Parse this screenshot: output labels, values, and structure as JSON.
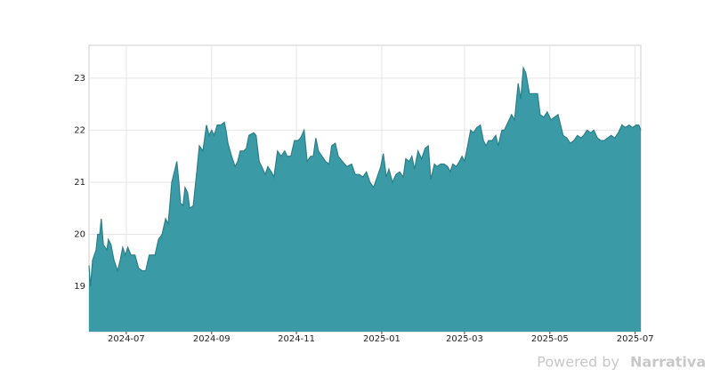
{
  "chart_data": {
    "type": "area",
    "x": [
      2024.427,
      2024.43,
      2024.434,
      2024.441,
      2024.444,
      2024.448,
      2024.451,
      2024.455,
      2024.462,
      2024.465,
      2024.47,
      2024.476,
      2024.483,
      2024.488,
      2024.493,
      2024.498,
      2024.503,
      2024.509,
      2024.517,
      2024.524,
      2024.531,
      2024.538,
      2024.545,
      2024.556,
      2024.563,
      2024.57,
      2024.577,
      2024.582,
      2024.589,
      2024.594,
      2024.599,
      2024.603,
      2024.606,
      2024.611,
      2024.615,
      2024.62,
      2024.624,
      2024.631,
      2024.638,
      2024.643,
      2024.65,
      2024.657,
      2024.662,
      2024.667,
      2024.672,
      2024.678,
      2024.685,
      2024.692,
      2024.695,
      2024.699,
      2024.706,
      2024.713,
      2024.718,
      2024.723,
      2024.73,
      2024.735,
      2024.74,
      2024.749,
      2024.754,
      2024.76,
      2024.765,
      2024.772,
      2024.777,
      2024.784,
      2024.789,
      2024.796,
      2024.803,
      2024.81,
      2024.815,
      2024.822,
      2024.829,
      2024.836,
      2024.841,
      2024.848,
      2024.854,
      2024.861,
      2024.866,
      2024.871,
      2024.876,
      2024.883,
      2024.89,
      2024.897,
      2024.902,
      2024.909,
      2024.915,
      2024.923,
      2024.932,
      2024.941,
      2024.948,
      2024.956,
      2024.963,
      2024.97,
      2024.977,
      2024.984,
      2024.991,
      2024.998,
      2025.003,
      2025.009,
      2025.014,
      2025.021,
      2025.028,
      2025.035,
      2025.042,
      2025.047,
      2025.054,
      2025.059,
      2025.064,
      2025.071,
      2025.078,
      2025.085,
      2025.091,
      2025.096,
      2025.103,
      2025.108,
      2025.115,
      2025.122,
      2025.129,
      2025.134,
      2025.139,
      2025.146,
      2025.152,
      2025.157,
      2025.162,
      2025.169,
      2025.174,
      2025.179,
      2025.186,
      2025.193,
      2025.199,
      2025.204,
      2025.209,
      2025.216,
      2025.223,
      2025.228,
      2025.235,
      2025.24,
      2025.247,
      2025.254,
      2025.26,
      2025.267,
      2025.272,
      2025.277,
      2025.282,
      2025.289,
      2025.298,
      2025.305,
      2025.31,
      2025.317,
      2025.324,
      2025.331,
      2025.338,
      2025.345,
      2025.35,
      2025.355,
      2025.362,
      2025.369,
      2025.376,
      2025.383,
      2025.39,
      2025.395,
      2025.402,
      2025.409,
      2025.415,
      2025.422,
      2025.429,
      2025.435,
      2025.442,
      2025.449,
      2025.456,
      2025.463,
      2025.47,
      2025.477,
      2025.484,
      2025.491,
      2025.498,
      2025.503,
      2025.507
    ],
    "values": [
      19.4,
      19.0,
      19.5,
      19.7,
      20.0,
      20.0,
      20.3,
      19.8,
      19.7,
      19.9,
      19.8,
      19.5,
      19.3,
      19.5,
      19.75,
      19.6,
      19.75,
      19.6,
      19.6,
      19.35,
      19.3,
      19.3,
      19.6,
      19.6,
      19.9,
      20.0,
      20.3,
      20.2,
      21.0,
      21.2,
      21.4,
      21.0,
      20.6,
      20.55,
      20.9,
      20.8,
      20.5,
      20.55,
      21.2,
      21.7,
      21.6,
      22.1,
      21.9,
      22.0,
      21.9,
      22.1,
      22.1,
      22.15,
      22.0,
      21.75,
      21.5,
      21.3,
      21.4,
      21.6,
      21.6,
      21.65,
      21.9,
      21.95,
      21.9,
      21.4,
      21.3,
      21.15,
      21.3,
      21.2,
      21.1,
      21.6,
      21.5,
      21.6,
      21.5,
      21.5,
      21.8,
      21.8,
      21.85,
      22.0,
      21.4,
      21.5,
      21.5,
      21.85,
      21.6,
      21.5,
      21.4,
      21.35,
      21.7,
      21.75,
      21.5,
      21.4,
      21.3,
      21.35,
      21.15,
      21.15,
      21.1,
      21.2,
      21.0,
      20.9,
      21.1,
      21.3,
      21.55,
      21.1,
      21.25,
      21.0,
      21.15,
      21.2,
      21.1,
      21.45,
      21.4,
      21.5,
      21.25,
      21.6,
      21.45,
      21.65,
      21.7,
      21.05,
      21.35,
      21.3,
      21.35,
      21.35,
      21.3,
      21.2,
      21.35,
      21.3,
      21.4,
      21.5,
      21.4,
      21.75,
      22.0,
      21.95,
      22.05,
      22.1,
      21.8,
      21.7,
      21.8,
      21.8,
      21.9,
      21.7,
      22.0,
      22.0,
      22.15,
      22.3,
      22.2,
      22.9,
      22.6,
      23.2,
      23.1,
      22.7,
      22.7,
      22.7,
      22.3,
      22.25,
      22.35,
      22.2,
      22.25,
      22.3,
      22.1,
      21.9,
      21.85,
      21.75,
      21.8,
      21.9,
      21.85,
      21.9,
      22.0,
      21.95,
      22.0,
      21.85,
      21.8,
      21.8,
      21.85,
      21.9,
      21.85,
      21.95,
      22.1,
      22.05,
      22.1,
      22.05,
      22.1,
      22.1,
      22.0
    ],
    "color": "#3a9ba6",
    "line_color": "#2b7f89",
    "xlim": [
      2024.427,
      2025.507
    ],
    "ylim": [
      18.13,
      23.63
    ],
    "xticks": [
      {
        "value": 2024.5,
        "label": "2024-07"
      },
      {
        "value": 2024.667,
        "label": "2024-09"
      },
      {
        "value": 2024.833,
        "label": "2024-11"
      },
      {
        "value": 2025.0,
        "label": "2025-01"
      },
      {
        "value": 2025.162,
        "label": "2025-03"
      },
      {
        "value": 2025.329,
        "label": "2025-05"
      },
      {
        "value": 2025.496,
        "label": "2025-07"
      }
    ],
    "yticks": [
      19,
      20,
      21,
      22,
      23
    ],
    "grid": true
  },
  "footer": {
    "prefix": "Powered by",
    "brand": "Narrativa"
  }
}
